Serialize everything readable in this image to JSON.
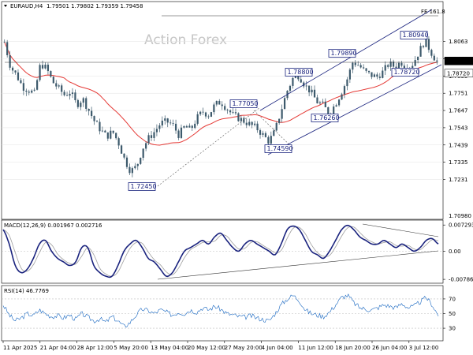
{
  "header": {
    "symbol": "EURAUD,H4",
    "ohlc": "1.79501 1.79802 1.79359 1.79458"
  },
  "watermark": "Action Forex",
  "fe_label": "FE 161.8",
  "chart_data": {
    "type": "candlestick",
    "timeframe": "H4",
    "main_panel": {
      "y_ticks": [
        1.8063,
        1.7959,
        1.7855,
        1.7751,
        1.7647,
        1.7543,
        1.7439,
        1.7335,
        1.7231
      ],
      "y_range": [
        1.7,
        1.8285
      ],
      "current_price": 1.79458,
      "price_labels": [
        "1.79458",
        "1.78720"
      ],
      "level_labels": [
        {
          "label": "1.80940",
          "value": 1.8094
        },
        {
          "label": "1.79890",
          "value": 1.7989
        },
        {
          "label": "1.78800",
          "value": 1.788
        },
        {
          "label": "1.78720",
          "value": 1.7872
        },
        {
          "label": "1.77050",
          "value": 1.7705
        },
        {
          "label": "1.76260",
          "value": 1.7626
        },
        {
          "label": "1.74590",
          "value": 1.7459
        },
        {
          "label": "1.72450",
          "value": 1.7245
        }
      ],
      "horizontal_levels": [
        1.8243,
        1.7989
      ],
      "bottom_tick": "1.70980",
      "moving_average": "red",
      "close_path": [
        1.806,
        1.791,
        1.786,
        1.779,
        1.777,
        1.775,
        1.793,
        1.79,
        1.782,
        1.778,
        1.774,
        1.776,
        1.768,
        1.772,
        1.765,
        1.758,
        1.753,
        1.749,
        1.752,
        1.745,
        1.735,
        1.728,
        1.731,
        1.742,
        1.748,
        1.752,
        1.757,
        1.758,
        1.756,
        1.75,
        1.755,
        1.753,
        1.76,
        1.764,
        1.762,
        1.768,
        1.77,
        1.766,
        1.762,
        1.76,
        1.758,
        1.756,
        1.754,
        1.75,
        1.746,
        1.752,
        1.764,
        1.776,
        1.784,
        1.786,
        1.78,
        1.776,
        1.77,
        1.768,
        1.763,
        1.768,
        1.775,
        1.783,
        1.794,
        1.792,
        1.788,
        1.786,
        1.785,
        1.788,
        1.793,
        1.791,
        1.794,
        1.79,
        1.793,
        1.8,
        1.807,
        1.8,
        1.794
      ]
    },
    "macd_panel": {
      "title": "MACD(12,26,9) 0.001967 0.002716",
      "y_ticks": [
        "0.007293",
        "0.00",
        "-0.007862"
      ],
      "y_range": [
        -0.0085,
        0.008
      ],
      "macd_path": [
        0.006,
        0.002,
        -0.004,
        -0.006,
        -0.005,
        -0.002,
        0.002,
        0.003,
        0.0,
        -0.002,
        -0.003,
        -0.004,
        -0.003,
        0.001,
        0.001,
        -0.004,
        -0.006,
        -0.007,
        -0.007,
        -0.004,
        0.0,
        0.002,
        0.003,
        0.001,
        -0.002,
        -0.003,
        -0.005,
        -0.007,
        -0.006,
        -0.003,
        0.0,
        0.001,
        0.002,
        0.003,
        0.002,
        0.004,
        0.005,
        0.003,
        0.001,
        0.0,
        0.002,
        0.003,
        0.002,
        0.001,
        0.0,
        -0.001,
        0.002,
        0.006,
        0.007,
        0.006,
        0.003,
        0.0,
        -0.001,
        -0.002,
        0.0,
        0.003,
        0.006,
        0.0072,
        0.006,
        0.004,
        0.003,
        0.002,
        0.002,
        0.003,
        0.002,
        0.001,
        0.002,
        0.001,
        0.0,
        0.001,
        0.003,
        0.0035,
        0.002
      ]
    },
    "rsi_panel": {
      "title": "RSI(14) 46.7769",
      "y_ticks": [
        "70",
        "50",
        "30"
      ],
      "y_range": [
        15,
        85
      ],
      "rsi_path": [
        62,
        48,
        40,
        44,
        50,
        47,
        55,
        50,
        46,
        47,
        44,
        48,
        42,
        50,
        45,
        40,
        43,
        38,
        46,
        40,
        32,
        38,
        48,
        56,
        54,
        50,
        55,
        52,
        48,
        52,
        50,
        55,
        52,
        58,
        55,
        60,
        56,
        50,
        48,
        46,
        45,
        47,
        44,
        42,
        40,
        50,
        62,
        70,
        75,
        68,
        55,
        50,
        48,
        46,
        52,
        62,
        72,
        75,
        65,
        58,
        56,
        55,
        58,
        62,
        60,
        58,
        64,
        58,
        60,
        66,
        72,
        62,
        47
      ]
    },
    "x_tick_labels": [
      "11 Apr 2025",
      "21 Apr 04:00",
      "28 Apr 12:00",
      "5 May 20:00",
      "13 May 04:00",
      "20 May 12:00",
      "27 May 20:00",
      "4 Jun 04:00",
      "11 Jun 12:00",
      "18 Jun 20:00",
      "26 Jun 04:00",
      "3 Jul 12:00"
    ],
    "colors": {
      "candles": "#3d5a6c",
      "moving_average": "#e53935",
      "channel": "#1a237e",
      "macd": "#1a237e",
      "macd_signal": "#9e9e9e",
      "rsi": "#1565c0",
      "price_badge": "#000000"
    }
  }
}
